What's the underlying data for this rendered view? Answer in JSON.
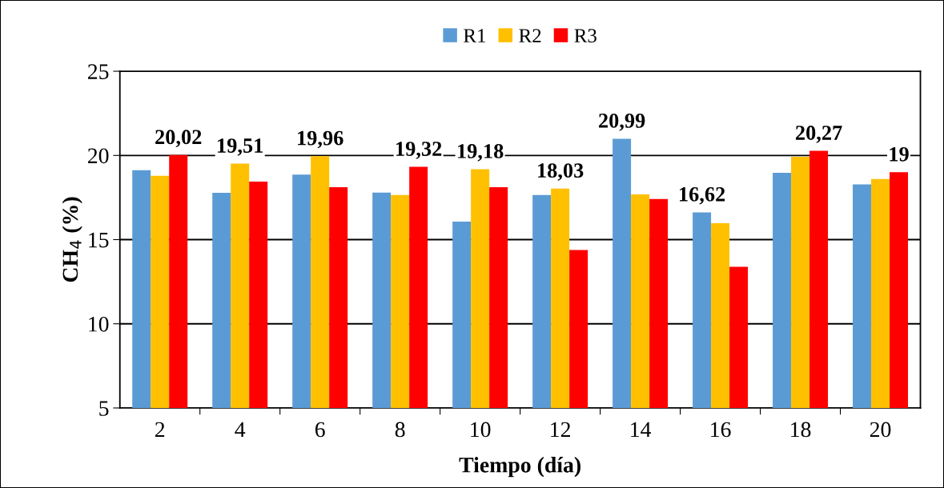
{
  "chart_data": {
    "type": "bar",
    "xlabel": "Tiempo (día)",
    "ylabel": "CH$_{4}$ (%)",
    "categories": [
      "2",
      "4",
      "6",
      "8",
      "10",
      "12",
      "14",
      "16",
      "18",
      "20"
    ],
    "series": [
      {
        "name": "R1",
        "color": "#5b9bd5",
        "values": [
          19.12,
          17.78,
          18.86,
          17.79,
          16.07,
          17.65,
          20.99,
          16.62,
          18.97,
          18.28
        ],
        "value_labels": [
          null,
          null,
          null,
          null,
          null,
          null,
          "20,99",
          "16,62",
          null,
          null
        ]
      },
      {
        "name": "R2",
        "color": "#ffc000",
        "values": [
          18.79,
          19.51,
          19.96,
          17.65,
          19.18,
          18.03,
          17.68,
          15.98,
          19.92,
          18.6
        ],
        "value_labels": [
          null,
          "19,51",
          "19,96",
          null,
          "19,18",
          "18,03",
          null,
          null,
          null,
          null
        ]
      },
      {
        "name": "R3",
        "color": "#ff0000",
        "values": [
          20.02,
          18.45,
          18.11,
          19.32,
          18.11,
          14.38,
          17.41,
          13.38,
          20.27,
          19
        ],
        "value_labels": [
          "20,02",
          null,
          null,
          "19,32",
          null,
          null,
          null,
          null,
          "20,27",
          "19"
        ]
      }
    ],
    "ylim": [
      5,
      25
    ],
    "yticks": [
      5,
      10,
      15,
      20,
      25
    ],
    "grid": "y",
    "legend": "top"
  }
}
